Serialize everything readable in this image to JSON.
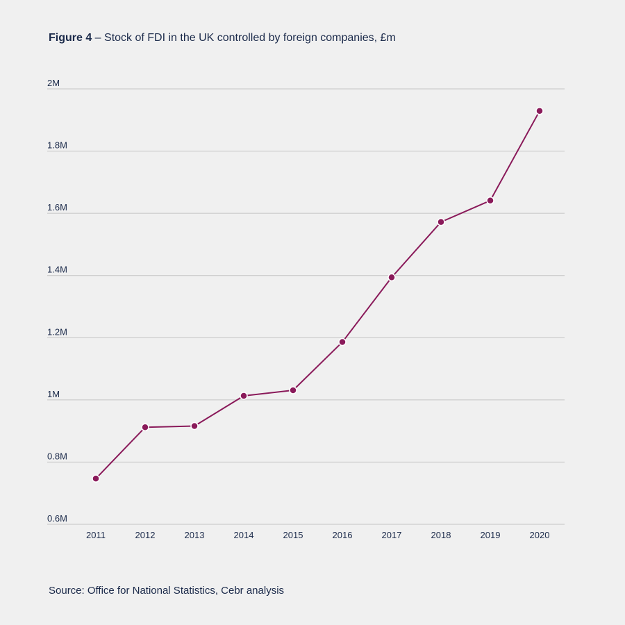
{
  "title": {
    "figure_label": "Figure 4",
    "text": " – Stock of FDI in the UK controlled by foreign companies, £m"
  },
  "source": "Source: Office for National Statistics, Cebr analysis",
  "chart_data": {
    "type": "line",
    "title": "Figure 4 – Stock of FDI in the UK controlled by foreign companies, £m",
    "xlabel": "",
    "ylabel": "",
    "x": [
      "2011",
      "2012",
      "2013",
      "2014",
      "2015",
      "2016",
      "2017",
      "2018",
      "2019",
      "2020"
    ],
    "series": [
      {
        "values": [
          747000,
          912000,
          916000,
          1013000,
          1031000,
          1186000,
          1394000,
          1572000,
          1641000,
          1929000
        ]
      }
    ],
    "ylim": [
      600000,
      2000000
    ],
    "y_ticks": [
      {
        "value": 600000,
        "label": "0.6M"
      },
      {
        "value": 800000,
        "label": "0.8M"
      },
      {
        "value": 1000000,
        "label": "1M"
      },
      {
        "value": 1200000,
        "label": "1.2M"
      },
      {
        "value": 1400000,
        "label": "1.4M"
      },
      {
        "value": 1600000,
        "label": "1.6M"
      },
      {
        "value": 1800000,
        "label": "1.8M"
      },
      {
        "value": 2000000,
        "label": "2M"
      }
    ],
    "grid": true,
    "legend": "none",
    "colors": {
      "line": "#8a1a5a",
      "gridline": "#c4c4c4",
      "text": "#1b2a4a"
    }
  }
}
